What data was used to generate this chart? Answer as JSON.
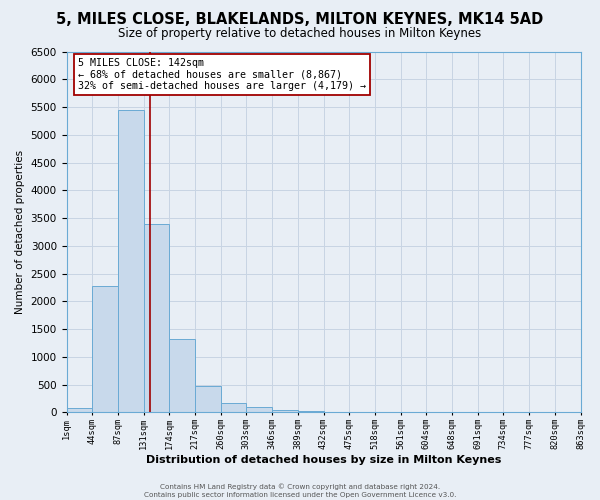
{
  "title": "5, MILES CLOSE, BLAKELANDS, MILTON KEYNES, MK14 5AD",
  "subtitle": "Size of property relative to detached houses in Milton Keynes",
  "xlabel": "Distribution of detached houses by size in Milton Keynes",
  "ylabel": "Number of detached properties",
  "bin_edges": [
    1,
    44,
    87,
    131,
    174,
    217,
    260,
    303,
    346,
    389,
    432,
    475,
    518,
    561,
    604,
    648,
    691,
    734,
    777,
    820,
    863
  ],
  "bin_counts": [
    75,
    2280,
    5450,
    3400,
    1320,
    480,
    175,
    100,
    45,
    20,
    10,
    5,
    0,
    0,
    0,
    0,
    0,
    0,
    0,
    0
  ],
  "bar_facecolor": "#c8d9eb",
  "bar_edgecolor": "#6aaad4",
  "grid_color": "#c8d4e3",
  "background_color": "#e8eef5",
  "plot_bg_color": "#e8eef5",
  "vline_x": 142,
  "vline_color": "#a00000",
  "annotation_box_text": "5 MILES CLOSE: 142sqm\n← 68% of detached houses are smaller (8,867)\n32% of semi-detached houses are larger (4,179) →",
  "annotation_box_edgecolor": "#a00000",
  "annotation_box_facecolor": "#ffffff",
  "footer_line1": "Contains HM Land Registry data © Crown copyright and database right 2024.",
  "footer_line2": "Contains public sector information licensed under the Open Government Licence v3.0.",
  "ylim": [
    0,
    6500
  ],
  "title_fontsize": 10.5,
  "subtitle_fontsize": 8.5,
  "tick_labels": [
    "1sqm",
    "44sqm",
    "87sqm",
    "131sqm",
    "174sqm",
    "217sqm",
    "260sqm",
    "303sqm",
    "346sqm",
    "389sqm",
    "432sqm",
    "475sqm",
    "518sqm",
    "561sqm",
    "604sqm",
    "648sqm",
    "691sqm",
    "734sqm",
    "777sqm",
    "820sqm",
    "863sqm"
  ]
}
